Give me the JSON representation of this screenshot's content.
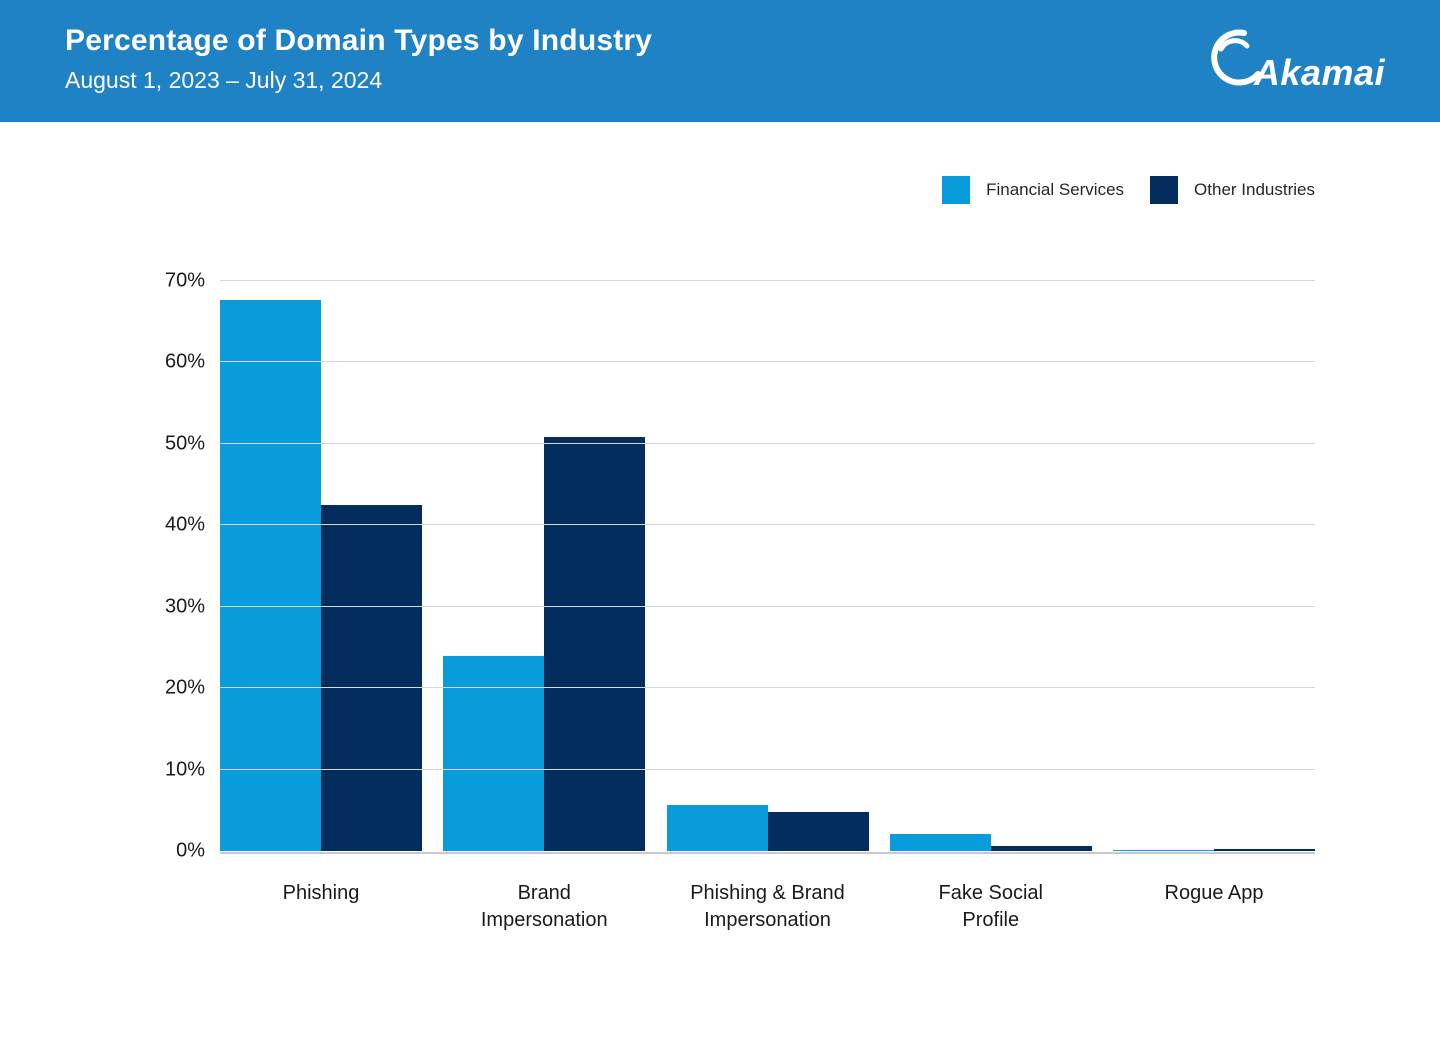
{
  "header": {
    "title": "Percentage of Domain Types by Industry",
    "subtitle": "August 1, 2023 – July 31, 2024",
    "logo_text": "Akamai"
  },
  "colors": {
    "header-bg": "#1f82c4",
    "financial-services": "#089cdc",
    "other-industries": "#032d5c",
    "gridline": "#d8d8d8",
    "axisline": "#c9c9c9"
  },
  "chart_data": {
    "type": "bar",
    "title": "Percentage of Domain Types by Industry",
    "subtitle": "August 1, 2023 – July 31, 2024",
    "categories": [
      "Phishing",
      "Brand\nImpersonation",
      "Phishing & Brand\nImpersonation",
      "Fake Social\nProfile",
      "Rogue App"
    ],
    "series": [
      {
        "name": "Financial Services",
        "color": "#089cdc",
        "values": [
          67.7,
          24.0,
          5.6,
          2.1,
          0.1
        ]
      },
      {
        "name": "Other Industries",
        "color": "#032d5c",
        "values": [
          42.5,
          50.8,
          4.8,
          0.6,
          0.2
        ]
      }
    ],
    "xlabel": "",
    "ylabel": "",
    "ylim": [
      0,
      70
    ],
    "yticks": [
      0,
      10,
      20,
      30,
      40,
      50,
      60,
      70
    ],
    "ytick_format": "{v}%",
    "grid": true,
    "legend_position": "top-right"
  }
}
